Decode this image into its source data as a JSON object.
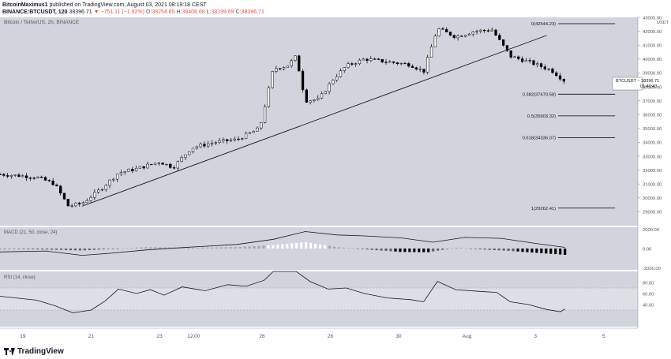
{
  "header": {
    "line1_author": "BitcoinMaximus1",
    "line1_rest": " published on TradingView.com, August 03, 2021 08:19:18 CEST",
    "symbol": "BINANCE:BTCUSDT, 120",
    "last": "38396.71",
    "change": "▼ −751.11 (−1.92%)",
    "o_label": "O:",
    "o": "38254.85",
    "h_label": "H:",
    "h": "38408.68",
    "l_label": "L:",
    "l": "38199.69",
    "c_label": "C:",
    "c": "38396.71"
  },
  "branding": {
    "logo_text": "TradingView"
  },
  "colors": {
    "pane": "#d1d4dc",
    "pane_light": "#dcdfe6",
    "up": "#ffffff",
    "down": "#000000",
    "fib": "#000000",
    "accent_red": "#ef5350"
  },
  "chart_data": {
    "type": "candlestick",
    "title": "Bitcoin / TetherUS, 2h, BINANCE",
    "price_axis": {
      "min": 28000,
      "max": 43000,
      "ticks": [
        43000,
        42000,
        41000,
        40000,
        39000,
        38000,
        37000,
        36000,
        35000,
        34000,
        33000,
        32000,
        31000,
        30000,
        29000
      ],
      "unit_label": "USDT"
    },
    "x_axis": {
      "ticks": [
        {
          "label": "19",
          "t": 0.5
        },
        {
          "label": "21",
          "t": 2.0
        },
        {
          "label": "23",
          "t": 3.5
        },
        {
          "label": "12:00",
          "t": 4.25
        },
        {
          "label": "26",
          "t": 5.75
        },
        {
          "label": "28",
          "t": 7.25
        },
        {
          "label": "30",
          "t": 8.75
        },
        {
          "label": "Aug",
          "t": 10.25
        },
        {
          "label": "3",
          "t": 11.75
        },
        {
          "label": "5",
          "t": 13.25
        }
      ]
    },
    "last_price_label": {
      "symbol": "BTCUSDT",
      "price": "38396.71",
      "countdown": "01:40:43"
    },
    "price_path": [
      [
        0.0,
        31700
      ],
      [
        0.8,
        31500
      ],
      [
        1.2,
        31000
      ],
      [
        1.5,
        29400
      ],
      [
        1.8,
        29600
      ],
      [
        2.2,
        30600
      ],
      [
        2.6,
        31800
      ],
      [
        3.0,
        32100
      ],
      [
        3.5,
        32600
      ],
      [
        3.8,
        32200
      ],
      [
        4.2,
        33600
      ],
      [
        4.7,
        34000
      ],
      [
        5.2,
        34200
      ],
      [
        5.7,
        35000
      ],
      [
        6.0,
        39300
      ],
      [
        6.3,
        39500
      ],
      [
        6.5,
        40200
      ],
      [
        6.7,
        37000
      ],
      [
        7.0,
        37100
      ],
      [
        7.3,
        38500
      ],
      [
        7.6,
        39500
      ],
      [
        8.0,
        40000
      ],
      [
        8.5,
        39800
      ],
      [
        9.0,
        39600
      ],
      [
        9.3,
        39100
      ],
      [
        9.6,
        42200
      ],
      [
        10.0,
        41600
      ],
      [
        10.4,
        42000
      ],
      [
        10.8,
        42100
      ],
      [
        11.2,
        40200
      ],
      [
        11.6,
        39800
      ],
      [
        12.1,
        39200
      ],
      [
        12.4,
        38396
      ]
    ],
    "trendline": {
      "start": [
        1.8,
        29400
      ],
      "end": [
        12.0,
        41700
      ]
    },
    "fib_levels": [
      {
        "ratio": "0",
        "price": 42544.23
      },
      {
        "ratio": "0.382",
        "price": 37470.58
      },
      {
        "ratio": "0.5",
        "price": 35903.32
      },
      {
        "ratio": "0.618",
        "price": 34336.07
      },
      {
        "ratio": "1",
        "price": 29262.41
      }
    ],
    "macd": {
      "label": "MACD (21, 50, close, 24)",
      "ticks": [
        2000,
        0,
        -2000
      ],
      "ylim": [
        -2200,
        2200
      ],
      "line_path": [
        [
          0.0,
          -350
        ],
        [
          1.0,
          -250
        ],
        [
          1.8,
          -700
        ],
        [
          2.4,
          -500
        ],
        [
          3.2,
          -150
        ],
        [
          4.0,
          100
        ],
        [
          5.2,
          420
        ],
        [
          6.0,
          950
        ],
        [
          6.7,
          1750
        ],
        [
          7.4,
          1400
        ],
        [
          8.0,
          1300
        ],
        [
          8.8,
          1100
        ],
        [
          9.5,
          650
        ],
        [
          10.2,
          1150
        ],
        [
          11.0,
          1050
        ],
        [
          11.8,
          500
        ],
        [
          12.4,
          120
        ]
      ],
      "hist_path": [
        [
          0.0,
          -20
        ],
        [
          1.0,
          -100
        ],
        [
          1.8,
          -200
        ],
        [
          2.4,
          -50
        ],
        [
          3.2,
          150
        ],
        [
          4.2,
          80
        ],
        [
          5.2,
          150
        ],
        [
          6.0,
          350
        ],
        [
          6.7,
          680
        ],
        [
          7.4,
          150
        ],
        [
          8.2,
          -150
        ],
        [
          8.8,
          -350
        ],
        [
          9.4,
          -380
        ],
        [
          10.0,
          100
        ],
        [
          10.6,
          -100
        ],
        [
          11.2,
          -250
        ],
        [
          12.4,
          -650
        ]
      ]
    },
    "rsi": {
      "label": "RSI (14, close)",
      "ticks": [
        40,
        60,
        80
      ],
      "ylim": [
        0,
        100
      ],
      "bands": [
        30,
        70
      ],
      "path": [
        [
          0.0,
          55
        ],
        [
          0.8,
          48
        ],
        [
          1.2,
          38
        ],
        [
          1.6,
          25
        ],
        [
          2.0,
          30
        ],
        [
          2.3,
          46
        ],
        [
          2.6,
          68
        ],
        [
          3.0,
          60
        ],
        [
          3.3,
          67
        ],
        [
          3.6,
          57
        ],
        [
          4.0,
          72
        ],
        [
          4.5,
          65
        ],
        [
          5.0,
          76
        ],
        [
          5.4,
          73
        ],
        [
          5.8,
          84
        ],
        [
          6.0,
          100
        ],
        [
          6.5,
          100
        ],
        [
          6.8,
          82
        ],
        [
          7.2,
          68
        ],
        [
          7.6,
          70
        ],
        [
          8.0,
          60
        ],
        [
          8.5,
          52
        ],
        [
          9.0,
          49
        ],
        [
          9.3,
          45
        ],
        [
          9.6,
          82
        ],
        [
          10.0,
          67
        ],
        [
          10.5,
          64
        ],
        [
          10.9,
          62
        ],
        [
          11.2,
          45
        ],
        [
          11.6,
          40
        ],
        [
          12.0,
          31
        ],
        [
          12.3,
          27
        ],
        [
          12.4,
          32
        ]
      ]
    }
  }
}
